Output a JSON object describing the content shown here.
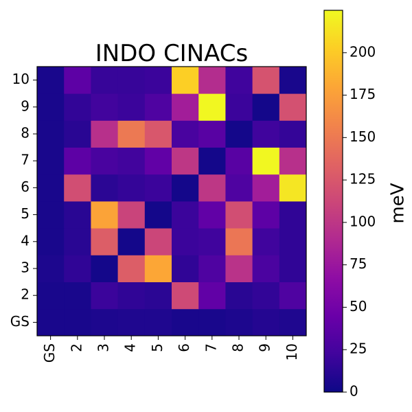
{
  "chart_data": {
    "type": "heatmap",
    "title": "INDO CINACs",
    "x_categories": [
      "GS",
      "2",
      "3",
      "4",
      "5",
      "6",
      "7",
      "8",
      "9",
      "10"
    ],
    "y_categories": [
      "GS",
      "2",
      "3",
      "4",
      "5",
      "6",
      "7",
      "8",
      "9",
      "10"
    ],
    "colorbar": {
      "label": "meV",
      "colormap": "plasma",
      "range": [
        0,
        225
      ],
      "ticks": [
        0,
        25,
        50,
        75,
        100,
        125,
        150,
        175,
        200
      ]
    },
    "grid": false,
    "values_by_row": {
      "10": [
        5,
        38,
        18,
        18,
        20,
        203,
        92,
        22,
        122,
        5
      ],
      "9": [
        5,
        16,
        23,
        20,
        30,
        80,
        224,
        20,
        3,
        120
      ],
      "8": [
        5,
        12,
        95,
        150,
        125,
        27,
        35,
        3,
        22,
        17
      ],
      "7": [
        5,
        38,
        27,
        23,
        40,
        100,
        3,
        35,
        224,
        95
      ],
      "6": [
        5,
        118,
        13,
        17,
        20,
        3,
        100,
        30,
        80,
        215
      ],
      "5": [
        5,
        12,
        178,
        110,
        3,
        20,
        40,
        118,
        38,
        15
      ],
      "4": [
        5,
        12,
        130,
        3,
        112,
        20,
        22,
        148,
        22,
        15
      ],
      "3": [
        7,
        15,
        3,
        130,
        180,
        15,
        30,
        97,
        28,
        15
      ],
      "2": [
        5,
        5,
        20,
        15,
        13,
        115,
        40,
        12,
        16,
        30
      ],
      "GS": [
        5,
        5,
        7,
        8,
        8,
        5,
        5,
        7,
        10,
        8
      ]
    }
  }
}
